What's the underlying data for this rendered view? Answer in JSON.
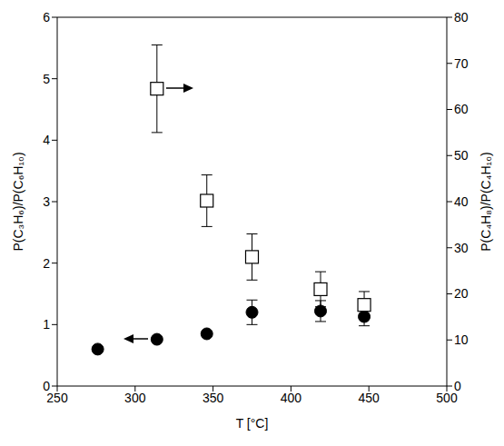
{
  "chart_data": {
    "type": "scatter",
    "x_label": "T [°C]",
    "y_label": "P(C₃H₆)/P(C₆H₁₀)",
    "y2_label": "P(C₄H₈)/P(C₄H₁₀)",
    "xlim": [
      250,
      500
    ],
    "xticks": [
      250,
      300,
      350,
      400,
      450,
      500
    ],
    "ylim": [
      0,
      6
    ],
    "yticks": [
      0,
      1,
      2,
      3,
      4,
      5,
      6
    ],
    "y2lim": [
      0,
      80
    ],
    "y2ticks": [
      0,
      10,
      20,
      30,
      40,
      50,
      60,
      70,
      80
    ],
    "series": [
      {
        "color": "#000000",
        "marker": "circle",
        "x": [
          276,
          314,
          346,
          375,
          419,
          447
        ],
        "values": [
          0.6,
          0.76,
          0.85,
          1.2,
          1.22,
          1.13
        ],
        "errors": [
          null,
          null,
          null,
          0.2,
          0.17,
          0.15
        ]
      },
      {
        "color": "#000000",
        "marker": "open_square",
        "axis": "y2",
        "x": [
          314,
          346,
          375,
          419,
          447
        ],
        "values": [
          64.5,
          40.2,
          28,
          21,
          17.6
        ],
        "errors": [
          9.5,
          5.6,
          5,
          3.8,
          2.9
        ]
      }
    ]
  }
}
